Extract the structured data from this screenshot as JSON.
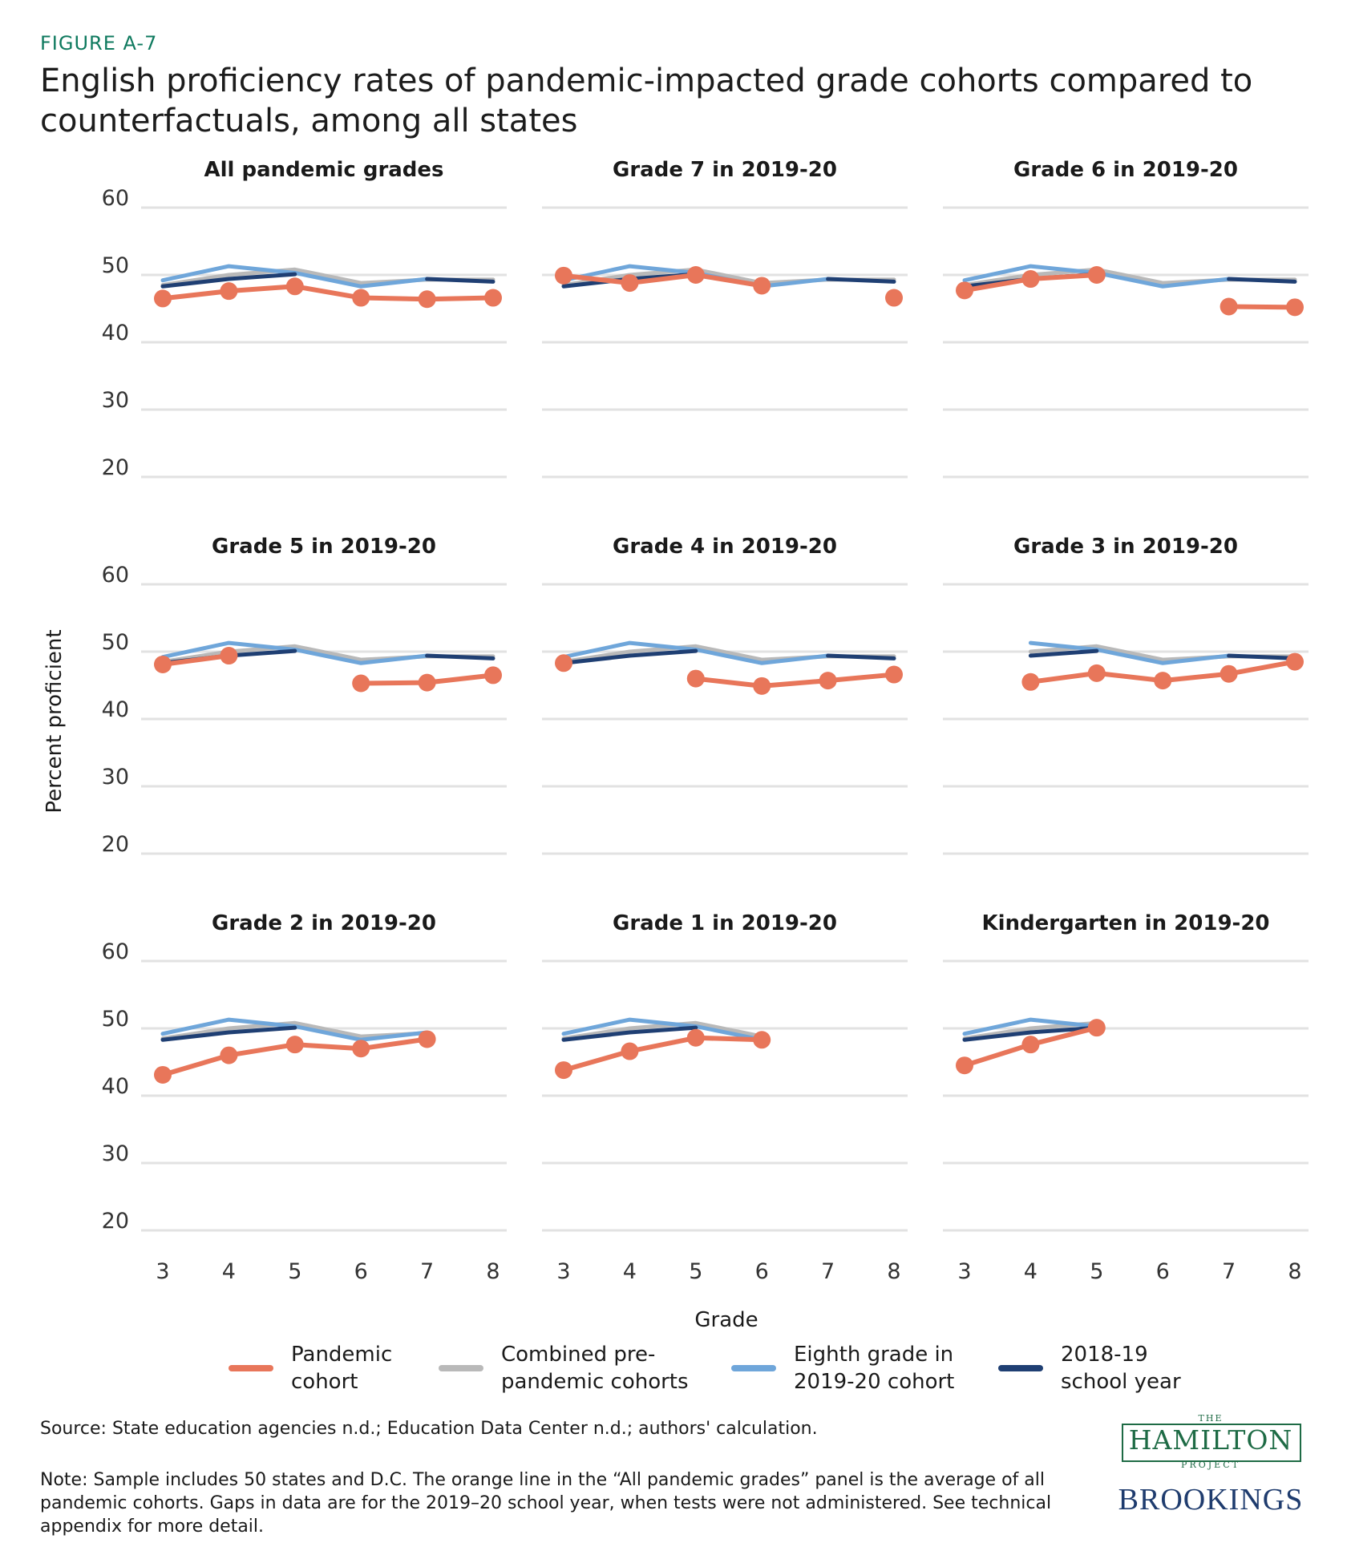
{
  "figure_label": "FIGURE A-7",
  "title": "English proficiency rates of pandemic-impacted grade cohorts compared to counterfactuals, among all states",
  "y_axis_label": "Percent proficient",
  "x_axis_label": "Grade",
  "legend": [
    {
      "label": "Pandemic\ncohort",
      "color": "#e8765a"
    },
    {
      "label": "Combined pre-\npandemic cohorts",
      "color": "#b9b9b9"
    },
    {
      "label": "Eighth grade in\n2019-20 cohort",
      "color": "#6fa6da"
    },
    {
      "label": "2018-19\nschool year",
      "color": "#1f3f73"
    }
  ],
  "source": "Source: State education agencies n.d.; Education Data Center n.d.; authors' calculation.",
  "note": "Note: Sample includes 50 states and D.C. The orange line in the “All pandemic grades” panel is the average of all pandemic cohorts. Gaps in data are for the 2019–20 school year, when tests were not administered. See technical appendix for more detail.",
  "logo": {
    "the": "THE",
    "hamilton": "HAMILTON",
    "project": "PROJECT",
    "brookings": "BROOKINGS"
  },
  "chart_data": {
    "type": "line",
    "layout": "3x3 small multiples",
    "x": [
      3,
      4,
      5,
      6,
      7,
      8
    ],
    "xlabel": "Grade",
    "ylabel": "Percent proficient",
    "ylim": [
      20,
      60
    ],
    "yticks": [
      20,
      30,
      40,
      50,
      60
    ],
    "reference_series": [
      {
        "name": "Combined pre-pandemic cohorts",
        "color": "#b9b9b9",
        "values": [
          48.5,
          50.0,
          50.8,
          48.8,
          49.3,
          49.3
        ]
      },
      {
        "name": "Eighth grade in 2019-20 cohort",
        "color": "#6fa6da",
        "values": [
          49.2,
          51.3,
          50.3,
          48.3,
          49.4,
          null
        ]
      },
      {
        "name": "2018-19 school year",
        "color": "#1f3f73",
        "values": [
          48.3,
          49.4,
          50.1,
          null,
          49.4,
          49.0
        ]
      }
    ],
    "panels": [
      {
        "title": "All pandemic grades",
        "start_grade": 3,
        "pandemic": [
          46.5,
          47.6,
          48.3,
          46.6,
          46.4,
          46.6
        ]
      },
      {
        "title": "Grade 7 in 2019-20",
        "start_grade": 3,
        "pandemic": [
          49.9,
          48.8,
          50.0,
          48.4,
          null,
          46.6
        ]
      },
      {
        "title": "Grade 6 in 2019-20",
        "start_grade": 3,
        "pandemic": [
          47.7,
          49.4,
          50.0,
          null,
          45.3,
          45.2
        ]
      },
      {
        "title": "Grade 5 in 2019-20",
        "start_grade": 3,
        "pandemic": [
          48.1,
          49.4,
          null,
          45.3,
          45.4,
          46.5
        ]
      },
      {
        "title": "Grade 4 in 2019-20",
        "start_grade": 3,
        "pandemic": [
          48.3,
          null,
          46.0,
          44.9,
          45.7,
          46.6
        ]
      },
      {
        "title": "Grade 3 in 2019-20",
        "start_grade": 4,
        "pandemic": [
          null,
          45.5,
          46.8,
          45.7,
          46.7,
          48.5
        ]
      },
      {
        "title": "Grade 2 in 2019-20",
        "start_grade": 3,
        "pandemic": [
          43.1,
          46.0,
          47.6,
          47.0,
          48.4,
          null
        ]
      },
      {
        "title": "Grade 1 in 2019-20",
        "start_grade": 3,
        "pandemic": [
          43.8,
          46.6,
          48.6,
          48.3,
          null,
          null
        ]
      },
      {
        "title": "Kindergarten in 2019-20",
        "start_grade": 3,
        "pandemic": [
          44.5,
          47.6,
          50.1,
          null,
          null,
          null
        ]
      }
    ]
  }
}
